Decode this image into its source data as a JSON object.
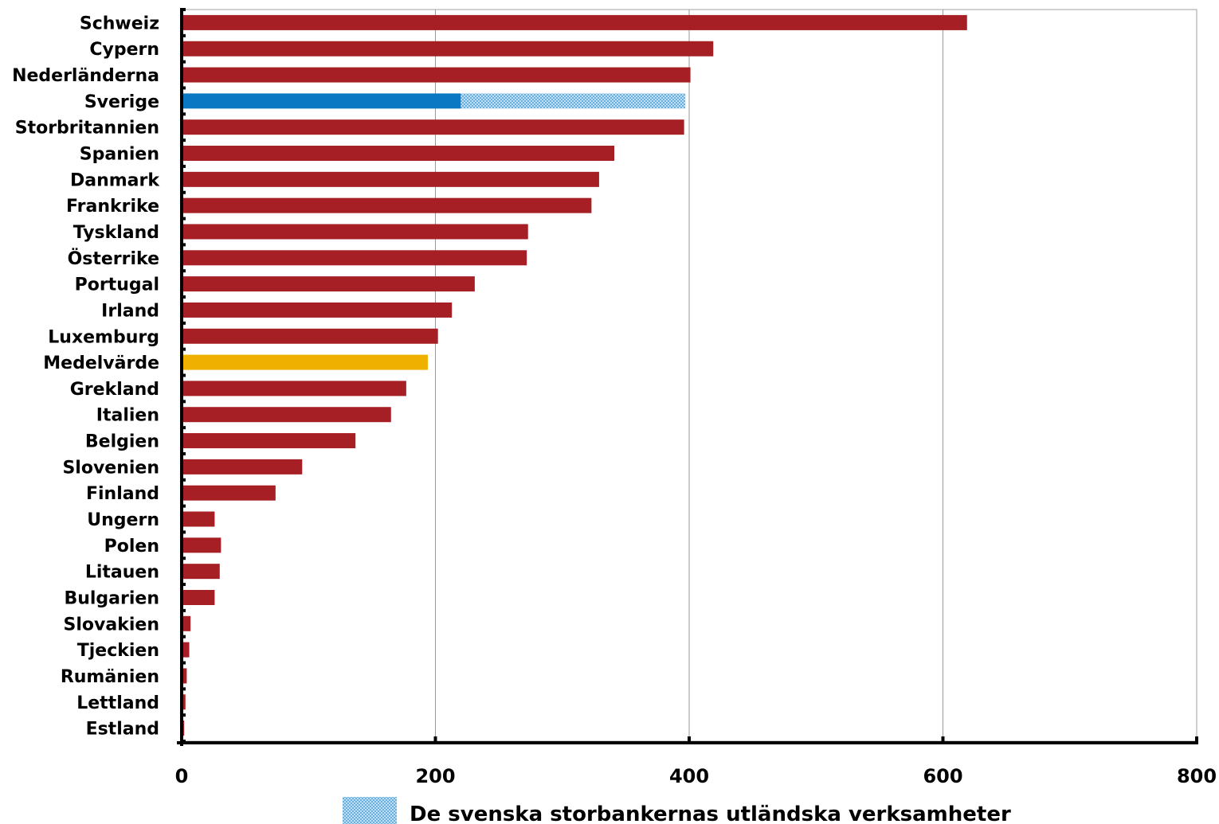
{
  "chart_data": {
    "type": "bar",
    "orientation": "horizontal",
    "title": "",
    "xlabel": "",
    "ylabel": "",
    "xlim": [
      0,
      800
    ],
    "x_ticks": [
      0,
      200,
      400,
      600,
      800
    ],
    "grid": "vertical",
    "legend_position": "bottom",
    "colors": {
      "default": "#a51f24",
      "sweden_domestic": "#0a78c2",
      "sweden_foreign": "#7fbfe6",
      "average": "#efb000"
    },
    "categories": [
      "Schweiz",
      "Cypern",
      "Nederländerna",
      "Sverige",
      "Storbritannien",
      "Spanien",
      "Danmark",
      "Frankrike",
      "Tyskland",
      "Österrike",
      "Portugal",
      "Irland",
      "Luxemburg",
      "Medelvärde",
      "Grekland",
      "Italien",
      "Belgien",
      "Slovenien",
      "Finland",
      "Ungern",
      "Polen",
      "Litauen",
      "Bulgarien",
      "Slovakien",
      "Tjeckien",
      "Rumänien",
      "Lettland",
      "Estland"
    ],
    "values": [
      619,
      419,
      401,
      397,
      396,
      341,
      329,
      323,
      273,
      272,
      231,
      213,
      202,
      194,
      177,
      165,
      137,
      95,
      74,
      26,
      31,
      30,
      26,
      7,
      6,
      4,
      3,
      2
    ],
    "series": [
      {
        "name": "De svenska storbankernas utländska verksamheter",
        "category": "Sverige",
        "start": 220,
        "value": 177
      }
    ],
    "sweden_domestic_value": 220,
    "legend": [
      {
        "label": "De svenska storbankernas utländska verksamheter",
        "pattern": "dotted-blue"
      }
    ]
  }
}
